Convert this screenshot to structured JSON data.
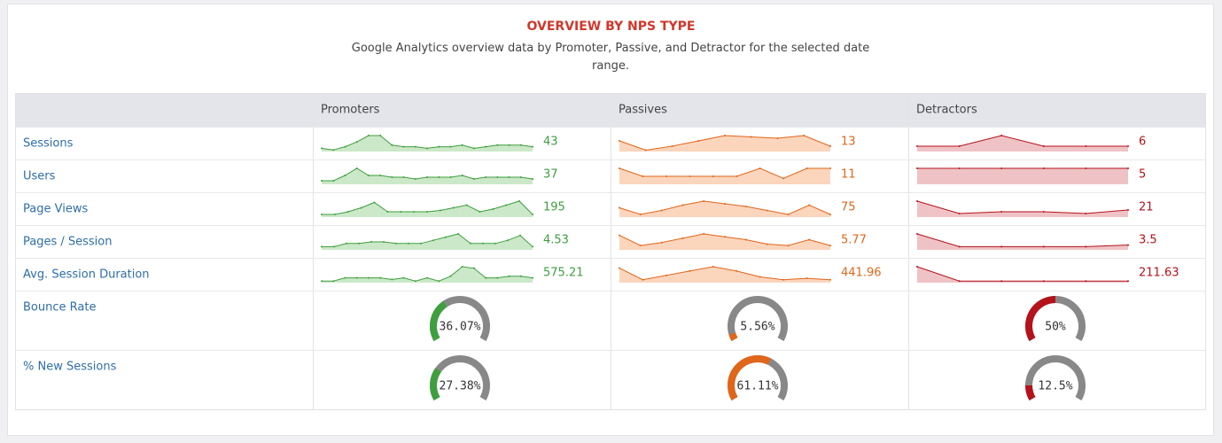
{
  "header": {
    "title": "OVERVIEW BY NPS TYPE",
    "subtitle": "Google Analytics overview data by Promoter, Passive, and Detractor for the selected date range."
  },
  "table": {
    "columns": [
      "Promoters",
      "Passives",
      "Detractors"
    ],
    "colors": [
      "#3f9f3f",
      "#e0661a",
      "#b5121b"
    ],
    "fills": [
      "#cbe8c8",
      "#fbd5bc",
      "#efc3c6"
    ],
    "metrics": [
      {
        "name": "Sessions",
        "values": [
          43,
          13,
          6
        ],
        "trends": [
          [
            2,
            1,
            3,
            6,
            10,
            10,
            4,
            3,
            3,
            2,
            3,
            3,
            4,
            2,
            3,
            4,
            4,
            4,
            3
          ],
          [
            8,
            1,
            4,
            8,
            12,
            11,
            10,
            12,
            4
          ],
          [
            2,
            2,
            6,
            2,
            2,
            2
          ]
        ]
      },
      {
        "name": "Users",
        "values": [
          37,
          11,
          5
        ],
        "trends": [
          [
            2,
            2,
            5,
            9,
            5,
            5,
            4,
            4,
            3,
            4,
            4,
            4,
            5,
            3,
            4,
            4,
            4,
            4,
            3
          ],
          [
            8,
            4,
            4,
            4,
            4,
            4,
            8,
            3,
            8,
            8
          ],
          [
            5,
            5,
            5,
            5,
            5,
            5
          ]
        ]
      },
      {
        "name": "Page Views",
        "values": [
          195,
          75,
          21
        ],
        "trends": [
          [
            2,
            2,
            4,
            7,
            11,
            4,
            4,
            4,
            4,
            5,
            7,
            9,
            4,
            6,
            9,
            12,
            2
          ],
          [
            7,
            2,
            5,
            9,
            12,
            10,
            8,
            5,
            2,
            9,
            2
          ],
          [
            9,
            2,
            3,
            3,
            2,
            4
          ]
        ]
      },
      {
        "name": "Pages / Session",
        "values": [
          4.53,
          5.77,
          3.5
        ],
        "trends": [
          [
            2,
            2,
            4,
            4,
            5,
            5,
            4,
            4,
            4,
            6,
            8,
            10,
            4,
            4,
            4,
            6,
            9,
            2
          ],
          [
            10,
            3,
            5,
            8,
            11,
            9,
            7,
            4,
            3,
            7,
            3
          ],
          [
            10,
            2,
            2,
            2,
            2,
            3
          ]
        ]
      },
      {
        "name": "Avg. Session Duration",
        "values": [
          575.21,
          441.96,
          211.63
        ],
        "trends": [
          [
            1,
            1,
            3,
            3,
            3,
            3,
            2,
            3,
            1,
            3,
            1,
            4,
            10,
            9,
            3,
            3,
            4,
            4,
            3
          ],
          [
            10,
            2,
            5,
            8,
            11,
            8,
            4,
            2,
            3,
            2
          ],
          [
            10,
            1,
            1,
            1,
            1,
            1
          ]
        ]
      }
    ],
    "gauges": [
      {
        "name": "Bounce Rate",
        "values": [
          36.07,
          5.56,
          50
        ],
        "value_labels": [
          "36.07%",
          "5.56%",
          "50%"
        ]
      },
      {
        "name": "% New Sessions",
        "values": [
          27.38,
          61.11,
          12.5
        ],
        "value_labels": [
          "27.38%",
          "61.11%",
          "12.5%"
        ]
      }
    ]
  }
}
